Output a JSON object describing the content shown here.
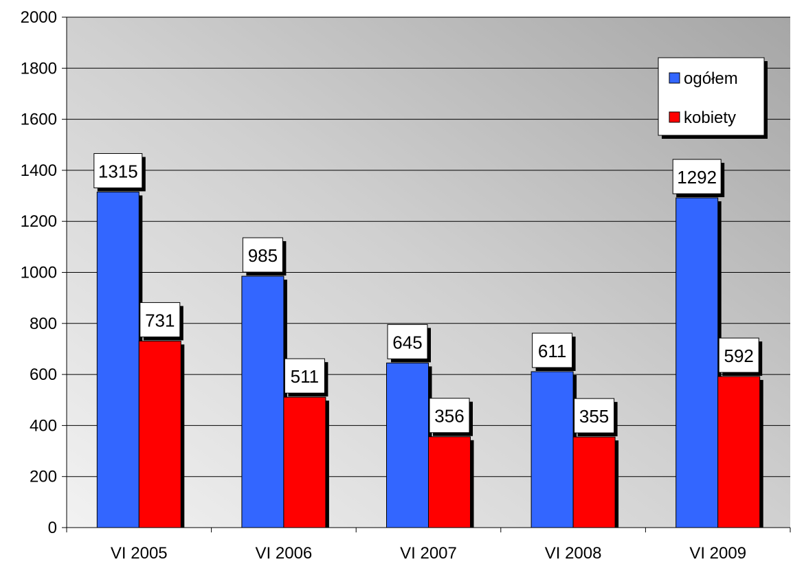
{
  "chart_data": {
    "type": "bar",
    "categories": [
      "VI 2005",
      "VI 2006",
      "VI 2007",
      "VI 2008",
      "VI 2009"
    ],
    "series": [
      {
        "name": "ogółem",
        "color": "#3366ff",
        "values": [
          1315,
          985,
          645,
          611,
          1292
        ]
      },
      {
        "name": "kobiety",
        "color": "#ff0000",
        "values": [
          731,
          511,
          356,
          355,
          592
        ]
      }
    ],
    "ylim": [
      0,
      2000
    ],
    "yticks": [
      0,
      200,
      400,
      600,
      800,
      1000,
      1200,
      1400,
      1600,
      1800,
      2000
    ],
    "grid": true,
    "legend_position": "top-right",
    "data_labels": true,
    "title": "",
    "xlabel": "",
    "ylabel": ""
  }
}
